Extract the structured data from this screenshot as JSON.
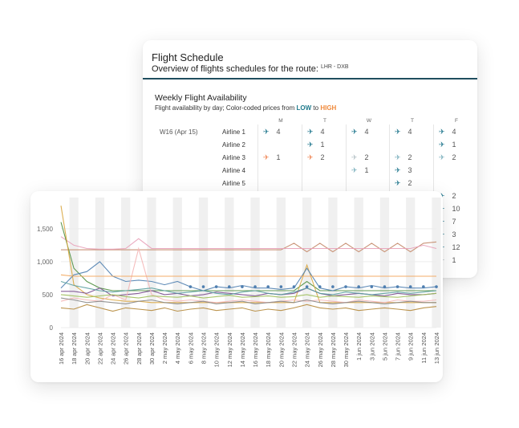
{
  "schedule": {
    "title": "Flight Schedule",
    "subtitle": "Overview of flights schedules for the route:",
    "route": "LHR - DXB",
    "widget_title": "Weekly Flight Availability",
    "widget_subtitle_prefix": "Flight availability by day; Color-coded prices from ",
    "low_label": "LOW",
    "to_label": " to ",
    "high_label": "HIGH",
    "day_headers": [
      "M",
      "T",
      "W",
      "T",
      "F"
    ],
    "week_label": "W16 (Apr 15)",
    "airlines": [
      "Airline 1",
      "Airline 2",
      "Airline 3",
      "Airline 4",
      "Airline 5"
    ],
    "cells": [
      {
        "row": 0,
        "col": 0,
        "count": "4",
        "tone": "teal"
      },
      {
        "row": 0,
        "col": 1,
        "count": "4",
        "tone": "teal"
      },
      {
        "row": 0,
        "col": 2,
        "count": "4",
        "tone": "teal"
      },
      {
        "row": 0,
        "col": 3,
        "count": "4",
        "tone": "teal"
      },
      {
        "row": 0,
        "col": 4,
        "count": "4",
        "tone": "teal"
      },
      {
        "row": 1,
        "col": 1,
        "count": "1",
        "tone": "teal"
      },
      {
        "row": 1,
        "col": 4,
        "count": "1",
        "tone": "teal"
      },
      {
        "row": 2,
        "col": 0,
        "count": "1",
        "tone": "orange"
      },
      {
        "row": 2,
        "col": 1,
        "count": "2",
        "tone": "orange"
      },
      {
        "row": 2,
        "col": 2,
        "count": "2",
        "tone": "grey"
      },
      {
        "row": 2,
        "col": 3,
        "count": "2",
        "tone": "mid"
      },
      {
        "row": 2,
        "col": 4,
        "count": "2",
        "tone": "mid"
      },
      {
        "row": 3,
        "col": 2,
        "count": "1",
        "tone": "mid"
      },
      {
        "row": 3,
        "col": 3,
        "count": "3",
        "tone": "teal"
      },
      {
        "row": 4,
        "col": 3,
        "count": "2",
        "tone": "teal"
      }
    ],
    "friday_extra": [
      {
        "count": "2",
        "tone": "teal"
      },
      {
        "count": "10",
        "tone": "teal"
      },
      {
        "count": "7",
        "tone": "teal"
      },
      {
        "count": "3",
        "tone": "teal"
      },
      {
        "count": "12",
        "tone": "teal"
      },
      {
        "count": "1",
        "tone": "grey"
      }
    ],
    "icon_glyph": "✈"
  },
  "chart_data": {
    "type": "line",
    "y_ticks": [
      "0",
      "500",
      "1,000",
      "1,500"
    ],
    "ylim": [
      0,
      1900
    ],
    "x": [
      "16 apr 2024",
      "18 apr 2024",
      "20 apr 2024",
      "22 apr 2024",
      "24 apr 2024",
      "26 apr 2024",
      "28 apr 2024",
      "30 apr 2024",
      "2 may 2024",
      "4 may 2024",
      "6 may 2024",
      "8 may 2024",
      "10 may 2024",
      "12 may 2024",
      "14 may 2024",
      "16 may 2024",
      "18 may 2024",
      "20 may 2024",
      "22 may 2024",
      "24 may 2024",
      "26 may 2024",
      "28 may 2024",
      "30 may 2024",
      "1 jun 2024",
      "3 jun 2024",
      "5 jun 2024",
      "7 jun 2024",
      "9 jun 2024",
      "11 jun 2024",
      "13 jun 2024"
    ],
    "grid_bands": true,
    "series": [
      {
        "color": "#c48a6a",
        "values": [
          1180,
          1180,
          1180,
          1180,
          1180,
          1180,
          1180,
          1180,
          1180,
          1180,
          1180,
          1180,
          1180,
          1180,
          1180,
          1180,
          1180,
          1180,
          1280,
          1150,
          1280,
          1150,
          1280,
          1150,
          1280,
          1150,
          1280,
          1150,
          1280,
          1300
        ]
      },
      {
        "color": "#e8a0b8",
        "values": [
          1380,
          1250,
          1200,
          1190,
          1190,
          1200,
          1350,
          1200,
          1200,
          1200,
          1200,
          1200,
          1200,
          1200,
          1200,
          1200,
          1200,
          1200,
          1200,
          1200,
          1200,
          1200,
          1200,
          1200,
          1200,
          1200,
          1200,
          1200,
          1250,
          1200
        ]
      },
      {
        "color": "#4f8f3f",
        "values": [
          1600,
          900,
          700,
          600,
          560,
          560,
          560,
          560,
          560,
          560,
          560,
          560,
          560,
          560,
          560,
          560,
          560,
          560,
          560,
          700,
          560,
          560,
          560,
          560,
          560,
          560,
          560,
          560,
          560,
          560
        ]
      },
      {
        "color": "#d9a640",
        "values": [
          1850,
          650,
          500,
          450,
          420,
          400,
          400,
          380,
          380,
          380,
          380,
          380,
          380,
          380,
          380,
          380,
          380,
          380,
          380,
          950,
          380,
          380,
          380,
          380,
          380,
          380,
          380,
          380,
          380,
          380
        ]
      },
      {
        "color": "#4f7fb0",
        "values": [
          600,
          800,
          850,
          1000,
          780,
          700,
          720,
          700,
          650,
          700,
          620,
          560,
          620,
          600,
          640,
          600,
          600,
          580,
          600,
          900,
          600,
          560,
          620,
          600,
          640,
          600,
          620,
          600,
          600,
          620
        ]
      },
      {
        "color": "#7a4f8f",
        "values": [
          550,
          550,
          520,
          600,
          480,
          500,
          520,
          560,
          500,
          520,
          480,
          500,
          540,
          520,
          500,
          480,
          520,
          500,
          520,
          600,
          520,
          480,
          500,
          520,
          500,
          480,
          520,
          500,
          500,
          520
        ]
      },
      {
        "color": "#f4b6b6",
        "values": [
          400,
          450,
          420,
          400,
          500,
          420,
          1200,
          500,
          420,
          400,
          420,
          400,
          380,
          400,
          420,
          400,
          380,
          400,
          420,
          400,
          420,
          400,
          380,
          420,
          400,
          380,
          420,
          400,
          400,
          420
        ]
      },
      {
        "color": "#b5883a",
        "values": [
          300,
          280,
          350,
          300,
          250,
          300,
          280,
          260,
          300,
          250,
          280,
          300,
          260,
          280,
          300,
          250,
          280,
          260,
          300,
          350,
          300,
          280,
          300,
          260,
          280,
          300,
          280,
          260,
          300,
          320
        ]
      },
      {
        "color": "#5aa0a0",
        "values": [
          700,
          640,
          600,
          560,
          540,
          560,
          580,
          600,
          560,
          520,
          540,
          560,
          520,
          500,
          540,
          560,
          520,
          500,
          540,
          600,
          520,
          500,
          540,
          520,
          500,
          520,
          540,
          520,
          540,
          560
        ]
      },
      {
        "color": "#f2a55a",
        "values": [
          800,
          780,
          780,
          780,
          780,
          780,
          780,
          780,
          780,
          780,
          780,
          780,
          780,
          780,
          780,
          780,
          780,
          780,
          780,
          780,
          780,
          780,
          780,
          780,
          780,
          780,
          780,
          780,
          780,
          780
        ]
      },
      {
        "color": "#888888",
        "values": [
          450,
          420,
          380,
          400,
          380,
          360,
          400,
          420,
          380,
          360,
          380,
          400,
          360,
          380,
          400,
          360,
          380,
          400,
          380,
          420,
          380,
          360,
          380,
          400,
          380,
          360,
          380,
          400,
          380,
          380
        ]
      },
      {
        "color": "#9fbf5a",
        "values": [
          500,
          480,
          460,
          480,
          500,
          470,
          450,
          480,
          470,
          460,
          480,
          450,
          470,
          490,
          460,
          470,
          480,
          460,
          470,
          500,
          460,
          480,
          470,
          460,
          480,
          470,
          460,
          480,
          500,
          520
        ]
      }
    ],
    "dot_series": {
      "color": "#4f7fb0",
      "values": [
        null,
        null,
        null,
        null,
        null,
        null,
        null,
        null,
        null,
        null,
        620,
        620,
        620,
        620,
        620,
        620,
        620,
        620,
        620,
        620,
        620,
        620,
        620,
        620,
        620,
        620,
        620,
        620,
        620,
        620
      ]
    }
  }
}
